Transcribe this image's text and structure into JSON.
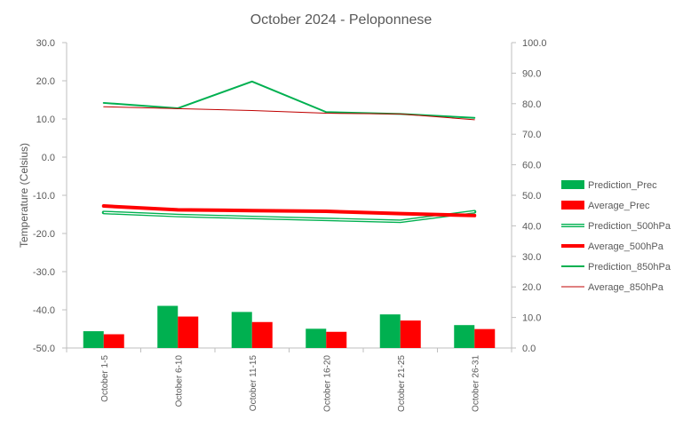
{
  "chart_data": {
    "type": "bar",
    "title": "October 2024 - Peloponnese",
    "ylabel": "Temperature  (Celsius)",
    "ylim": [
      -50,
      30
    ],
    "y2lim": [
      0,
      100
    ],
    "yticks": [
      "-50.0",
      "-40.0",
      "-30.0",
      "-20.0",
      "-10.0",
      "0.0",
      "10.0",
      "20.0",
      "30.0"
    ],
    "y2ticks": [
      "0.0",
      "10.0",
      "20.0",
      "30.0",
      "40.0",
      "50.0",
      "60.0",
      "70.0",
      "80.0",
      "90.0",
      "100.0"
    ],
    "categories": [
      "October 1-5",
      "October 6-10",
      "October 11-15",
      "October 16-20",
      "October 21-25",
      "October 26-31"
    ],
    "bar_series": [
      {
        "name": "Prediction_Prec",
        "color": "#00b050",
        "axis": "right",
        "values": [
          5.5,
          13.8,
          11.8,
          6.3,
          11.0,
          7.5
        ]
      },
      {
        "name": "Average_Prec",
        "color": "#ff0000",
        "axis": "right",
        "values": [
          4.5,
          10.3,
          8.5,
          5.3,
          9.0,
          6.2
        ]
      }
    ],
    "line_series": [
      {
        "name": "Prediction_500hPa",
        "color": "#00b050",
        "style": "double",
        "axis": "left",
        "values": [
          -14.5,
          -15.3,
          -15.8,
          -16.3,
          -16.8,
          -14.3
        ]
      },
      {
        "name": "Average_500hPa",
        "color": "#ff0000",
        "style": "thick",
        "axis": "left",
        "values": [
          -12.8,
          -13.8,
          -14.0,
          -14.2,
          -14.8,
          -15.3
        ]
      },
      {
        "name": "Prediction_850hPa",
        "color": "#00b050",
        "style": "medium",
        "axis": "left",
        "values": [
          14.2,
          12.8,
          19.8,
          11.8,
          11.3,
          10.3
        ]
      },
      {
        "name": "Average_850hPa",
        "color": "#c00000",
        "style": "thin",
        "axis": "left",
        "values": [
          13.2,
          12.7,
          12.2,
          11.5,
          11.3,
          9.8
        ]
      }
    ],
    "legend": [
      "Prediction_Prec",
      "Average_Prec",
      "Prediction_500hPa",
      "Average_500hPa",
      "Prediction_850hPa",
      "Average_850hPa"
    ],
    "legend_position": "right",
    "grid": false
  }
}
